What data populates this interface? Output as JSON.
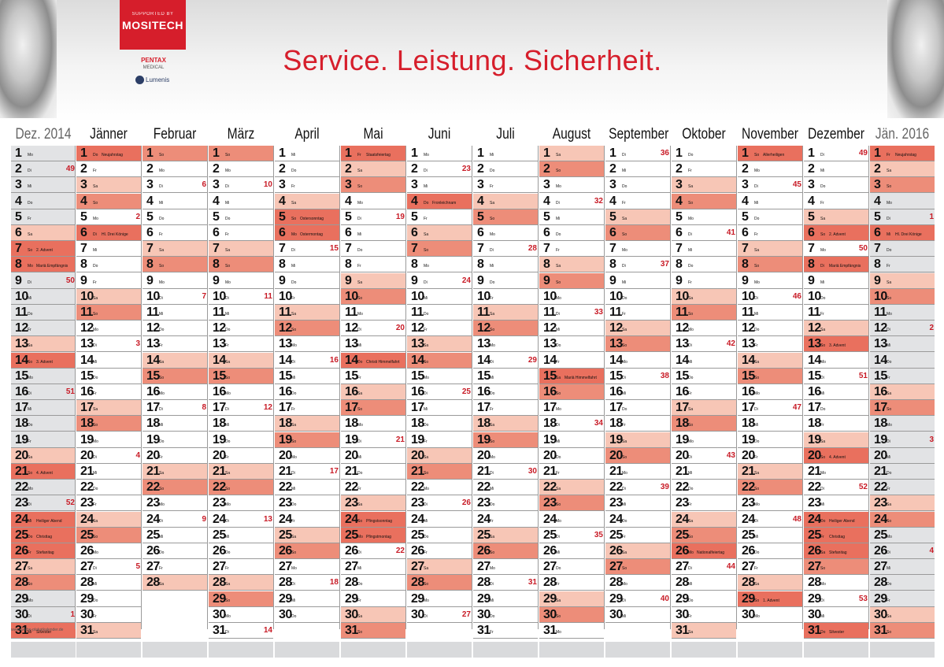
{
  "title": "Service. Leistung. Sicherheit.",
  "brand": {
    "supported": "SUPPORTED BY",
    "name": "MOSITECH",
    "pentax": "PENTAX",
    "pentax_sub": "MEDICAL",
    "lumenis": "Lumenis"
  },
  "credit": "www.werbe-plakatkalender.de",
  "colors": {
    "accent": "#d61e2b",
    "weekend_light": "#f7c6b6",
    "sunday": "#ed8d79",
    "holiday": "#e9705e",
    "edge_column": "#e2e3e5"
  },
  "months": [
    {
      "name": "Dez. 2014",
      "days": 31,
      "start": 0,
      "edge": true,
      "hol": {
        "8": "Mariä Empfängnis",
        "24": "Heiliger Abend",
        "25": "Christtag",
        "26": "Stefanitag",
        "31": "Silvester",
        "7": "2. Advent",
        "14": "3. Advent",
        "21": "4. Advent"
      },
      "kw": {
        "2": "49",
        "9": "50",
        "16": "51",
        "23": "52",
        "30": "1"
      }
    },
    {
      "name": "Jänner",
      "days": 31,
      "start": 3,
      "hol": {
        "1": "Neujahrstag",
        "6": "Hl. Drei Könige"
      },
      "kw": {
        "5": "2",
        "13": "3",
        "20": "4",
        "27": "5"
      }
    },
    {
      "name": "Februar",
      "days": 28,
      "start": 6,
      "hol": {},
      "kw": {
        "3": "6",
        "10": "7",
        "17": "8",
        "24": "9"
      }
    },
    {
      "name": "März",
      "days": 31,
      "start": 6,
      "hol": {},
      "kw": {
        "3": "10",
        "10": "11",
        "17": "12",
        "24": "13",
        "31": "14"
      }
    },
    {
      "name": "April",
      "days": 30,
      "start": 2,
      "hol": {
        "5": "Ostersonntag",
        "6": "Ostermontag"
      },
      "kw": {
        "7": "15",
        "14": "16",
        "21": "17",
        "28": "18"
      }
    },
    {
      "name": "Mai",
      "days": 31,
      "start": 4,
      "hol": {
        "1": "Staatsfeiertag",
        "14": "Christi Himmelfahrt",
        "24": "Pfingstsonntag",
        "25": "Pfingstmontag"
      },
      "kw": {
        "5": "19",
        "12": "20",
        "19": "21",
        "26": "22"
      }
    },
    {
      "name": "Juni",
      "days": 30,
      "start": 0,
      "hol": {
        "4": "Fronleichnam"
      },
      "kw": {
        "2": "23",
        "9": "24",
        "16": "25",
        "23": "26",
        "30": "27"
      }
    },
    {
      "name": "Juli",
      "days": 31,
      "start": 2,
      "hol": {},
      "kw": {
        "7": "28",
        "14": "29",
        "21": "30",
        "28": "31"
      }
    },
    {
      "name": "August",
      "days": 31,
      "start": 5,
      "hol": {
        "15": "Mariä Himmelfahrt"
      },
      "kw": {
        "4": "32",
        "11": "33",
        "18": "34",
        "25": "35"
      }
    },
    {
      "name": "September",
      "days": 30,
      "start": 1,
      "hol": {},
      "kw": {
        "1": "36",
        "8": "37",
        "15": "38",
        "22": "39",
        "29": "40"
      }
    },
    {
      "name": "Oktober",
      "days": 31,
      "start": 3,
      "hol": {
        "26": "Nationalfeiertag"
      },
      "kw": {
        "6": "41",
        "13": "42",
        "20": "43",
        "27": "44"
      }
    },
    {
      "name": "November",
      "days": 30,
      "start": 6,
      "hol": {
        "1": "Allerheiligen",
        "29": "1. Advent"
      },
      "kw": {
        "3": "45",
        "10": "46",
        "17": "47",
        "24": "48"
      }
    },
    {
      "name": "Dezember",
      "days": 31,
      "start": 1,
      "hol": {
        "6": "2. Advent",
        "8": "Mariä Empfängnis",
        "13": "3. Advent",
        "20": "4. Advent",
        "24": "Heiliger Abend",
        "25": "Christtag",
        "26": "Stefanitag",
        "31": "Silvester"
      },
      "kw": {
        "1": "49",
        "7": "50",
        "15": "51",
        "22": "52",
        "29": "53"
      }
    },
    {
      "name": "Jän. 2016",
      "days": 31,
      "start": 4,
      "edge": true,
      "hol": {
        "1": "Neujahrstag",
        "6": "Hl. Drei Könige"
      },
      "kw": {
        "5": "1",
        "12": "2",
        "19": "3",
        "26": "4"
      }
    }
  ],
  "weekdays": [
    "Mo",
    "Di",
    "Mi",
    "Do",
    "Fr",
    "Sa",
    "So"
  ]
}
